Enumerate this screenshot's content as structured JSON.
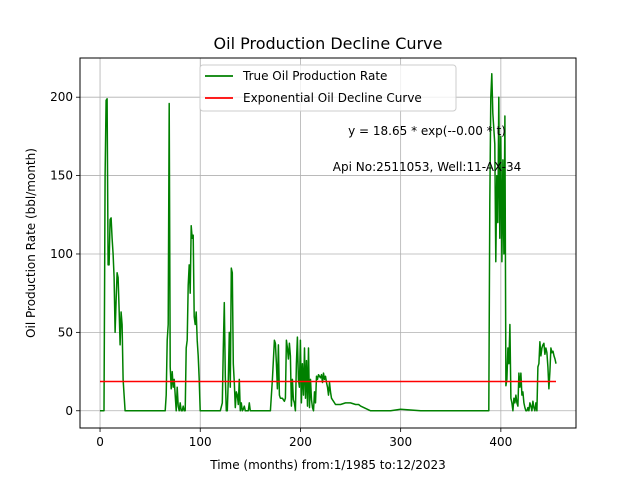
{
  "chart_data": {
    "type": "line",
    "title": "Oil Production Decline Curve",
    "xlabel": "Time (months) from:1/1985 to:12/2023",
    "ylabel": "Oil Production Rate (bbl/month)",
    "xlim": [
      -20,
      475
    ],
    "ylim": [
      -11,
      225
    ],
    "xticks": [
      0,
      100,
      200,
      300,
      400
    ],
    "yticks": [
      0,
      50,
      100,
      150,
      200
    ],
    "grid": true,
    "legend_position": "top-center",
    "annotations": [
      "y = 18.65 * exp(--0.00 * t)",
      "Api No:2511053, Well:11-AX-34"
    ],
    "series": [
      {
        "name": "True Oil Production Rate",
        "color": "#008000",
        "x": [
          0,
          4,
          5,
          6,
          7,
          8,
          9,
          10,
          11,
          12,
          13,
          14,
          15,
          16,
          17,
          18,
          19,
          20,
          21,
          22,
          23,
          25,
          30,
          40,
          50,
          60,
          65,
          66,
          67,
          68,
          69,
          70,
          71,
          72,
          73,
          74,
          75,
          76,
          77,
          78,
          79,
          80,
          81,
          82,
          83,
          84,
          85,
          86,
          87,
          88,
          89,
          90,
          91,
          92,
          93,
          94,
          95,
          96,
          97,
          98,
          99,
          100,
          101,
          102,
          105,
          110,
          115,
          120,
          122,
          123,
          124,
          125,
          126,
          127,
          128,
          129,
          130,
          131,
          132,
          133,
          134,
          135,
          136,
          137,
          138,
          139,
          140,
          141,
          142,
          143,
          144,
          145,
          146,
          147,
          148,
          149,
          150,
          160,
          170,
          172,
          174,
          175,
          176,
          177,
          178,
          179,
          180,
          181,
          182,
          183,
          184,
          185,
          186,
          187,
          188,
          189,
          190,
          191,
          192,
          193,
          194,
          195,
          196,
          197,
          198,
          199,
          200,
          201,
          202,
          203,
          204,
          205,
          206,
          207,
          208,
          209,
          210,
          211,
          212,
          213,
          214,
          215,
          216,
          217,
          218,
          219,
          220,
          221,
          222,
          223,
          224,
          225,
          226,
          227,
          228,
          229,
          230,
          231,
          232,
          233,
          234,
          235,
          240,
          245,
          250,
          255,
          258,
          260,
          270,
          280,
          285,
          290,
          300,
          320,
          340,
          360,
          380,
          385,
          386,
          387,
          388,
          389,
          390,
          391,
          392,
          393,
          394,
          395,
          396,
          397,
          398,
          399,
          400,
          401,
          402,
          403,
          404,
          405,
          406,
          407,
          408,
          409,
          410,
          411,
          412,
          413,
          414,
          415,
          416,
          417,
          418,
          419,
          420,
          421,
          422,
          423,
          424,
          425,
          426,
          427,
          428,
          429,
          430,
          431,
          432,
          433,
          434,
          435,
          436,
          437,
          438,
          439,
          440,
          441,
          442,
          443,
          444,
          445,
          446,
          447,
          448,
          449,
          450,
          451,
          452,
          453,
          454,
          455
        ],
        "y": [
          0,
          0,
          150,
          198,
          199,
          93,
          93,
          122,
          123,
          110,
          100,
          85,
          50,
          70,
          88,
          85,
          65,
          42,
          63,
          55,
          20,
          0,
          0,
          0,
          0,
          0,
          0,
          10,
          45,
          55,
          196,
          28,
          14,
          25,
          15,
          20,
          10,
          0,
          15,
          3,
          0,
          5,
          0,
          0,
          3,
          0,
          0,
          40,
          45,
          80,
          93,
          75,
          118,
          110,
          112,
          60,
          55,
          63,
          45,
          35,
          20,
          0,
          0,
          0,
          0,
          0,
          0,
          0,
          5,
          40,
          69,
          22,
          0,
          0,
          20,
          50,
          15,
          91,
          88,
          30,
          18,
          2,
          12,
          10,
          4,
          20,
          0,
          5,
          0,
          1,
          3,
          0,
          0,
          0,
          0,
          5,
          0,
          0,
          0,
          20,
          45,
          43,
          30,
          14,
          42,
          10,
          8,
          8,
          8,
          7,
          6,
          8,
          45,
          40,
          33,
          43,
          35,
          3,
          20,
          7,
          5,
          0,
          30,
          47,
          20,
          15,
          45,
          5,
          30,
          10,
          40,
          8,
          32,
          3,
          40,
          2,
          20,
          7,
          2,
          0,
          12,
          5,
          22,
          20,
          23,
          22,
          21,
          23,
          18,
          24,
          20,
          22,
          18,
          15,
          10,
          18,
          12,
          8,
          7,
          6,
          5,
          4,
          4,
          5,
          5,
          4,
          4,
          3,
          0,
          0,
          0,
          0,
          1,
          0,
          0,
          0,
          0,
          0,
          0,
          0,
          0,
          132,
          200,
          215,
          190,
          180,
          170,
          95,
          150,
          120,
          200,
          110,
          175,
          95,
          160,
          100,
          188,
          16,
          20,
          40,
          30,
          55,
          8,
          5,
          0,
          8,
          5,
          10,
          5,
          3,
          24,
          15,
          24,
          10,
          12,
          5,
          2,
          0,
          0,
          2,
          0,
          5,
          3,
          0,
          6,
          2,
          0,
          5,
          0,
          28,
          30,
          44,
          35,
          40,
          42,
          43,
          36,
          40,
          37,
          28,
          14,
          25,
          40,
          37,
          38,
          35,
          33,
          30
        ]
      },
      {
        "name": "Exponential Oil Decline Curve",
        "color": "#ff0000",
        "x": [
          0,
          455
        ],
        "y": [
          18.65,
          18.65
        ]
      }
    ]
  }
}
